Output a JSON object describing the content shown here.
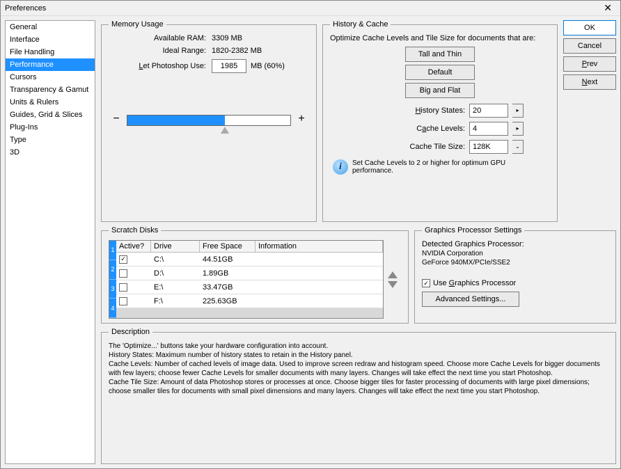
{
  "window": {
    "title": "Preferences"
  },
  "sidebar": {
    "items": [
      "General",
      "Interface",
      "File Handling",
      "Performance",
      "Cursors",
      "Transparency & Gamut",
      "Units & Rulers",
      "Guides, Grid & Slices",
      "Plug-Ins",
      "Type",
      "3D"
    ],
    "selected_index": 3
  },
  "buttons": {
    "ok": "OK",
    "cancel": "Cancel",
    "prev": "Prev",
    "next": "Next"
  },
  "memory": {
    "legend": "Memory Usage",
    "available_label": "Available RAM:",
    "available_value": "3309 MB",
    "ideal_label": "Ideal Range:",
    "ideal_value": "1820-2382 MB",
    "use_label": "Let Photoshop Use:",
    "use_input": "1985",
    "use_suffix": "MB (60%)",
    "slider_percent": 60,
    "slider_style": {
      "track_bg": "#ffffff",
      "fill": "#1e90ff",
      "border": "#666666"
    }
  },
  "cache": {
    "legend": "History & Cache",
    "desc": "Optimize Cache Levels and Tile Size for documents that are:",
    "presets": [
      "Tall and Thin",
      "Default",
      "Big and Flat"
    ],
    "history_label": "History States:",
    "history_value": "20",
    "levels_label": "Cache Levels:",
    "levels_value": "4",
    "tile_label": "Cache Tile Size:",
    "tile_value": "128K",
    "info": "Set Cache Levels to 2 or higher for optimum GPU performance."
  },
  "scratch": {
    "legend": "Scratch Disks",
    "columns": [
      "Active?",
      "Drive",
      "Free Space",
      "Information"
    ],
    "rows": [
      {
        "n": "1",
        "active": true,
        "drive": "C:\\",
        "free": "44.51GB",
        "info": ""
      },
      {
        "n": "2",
        "active": false,
        "drive": "D:\\",
        "free": "1.89GB",
        "info": ""
      },
      {
        "n": "3",
        "active": false,
        "drive": "E:\\",
        "free": "33.47GB",
        "info": ""
      },
      {
        "n": "4",
        "active": false,
        "drive": "F:\\",
        "free": "225.63GB",
        "info": ""
      }
    ]
  },
  "gpu": {
    "legend": "Graphics Processor Settings",
    "detected_label": "Detected Graphics Processor:",
    "vendor": "NVIDIA Corporation",
    "model": "GeForce 940MX/PCIe/SSE2",
    "use_label": "Use Graphics Processor",
    "use_checked": true,
    "advanced": "Advanced Settings..."
  },
  "description": {
    "legend": "Description",
    "lines": [
      "The 'Optimize...' buttons take your hardware configuration into account.",
      "History States: Maximum number of history states to retain in the History panel.",
      "Cache Levels: Number of cached levels of image data.  Used to improve screen redraw and histogram speed.  Choose more Cache Levels for bigger documents with few layers; choose fewer Cache Levels for smaller documents with many layers. Changes will take effect the next time you start Photoshop.",
      "Cache Tile Size: Amount of data Photoshop stores or processes at once. Choose bigger tiles for faster processing of documents with large pixel dimensions; choose smaller tiles for documents with small pixel dimensions and many layers. Changes will take effect the next time you start Photoshop."
    ]
  },
  "colors": {
    "accent": "#1e90ff",
    "bg": "#f0f0f0",
    "border": "#a0a0a0"
  }
}
